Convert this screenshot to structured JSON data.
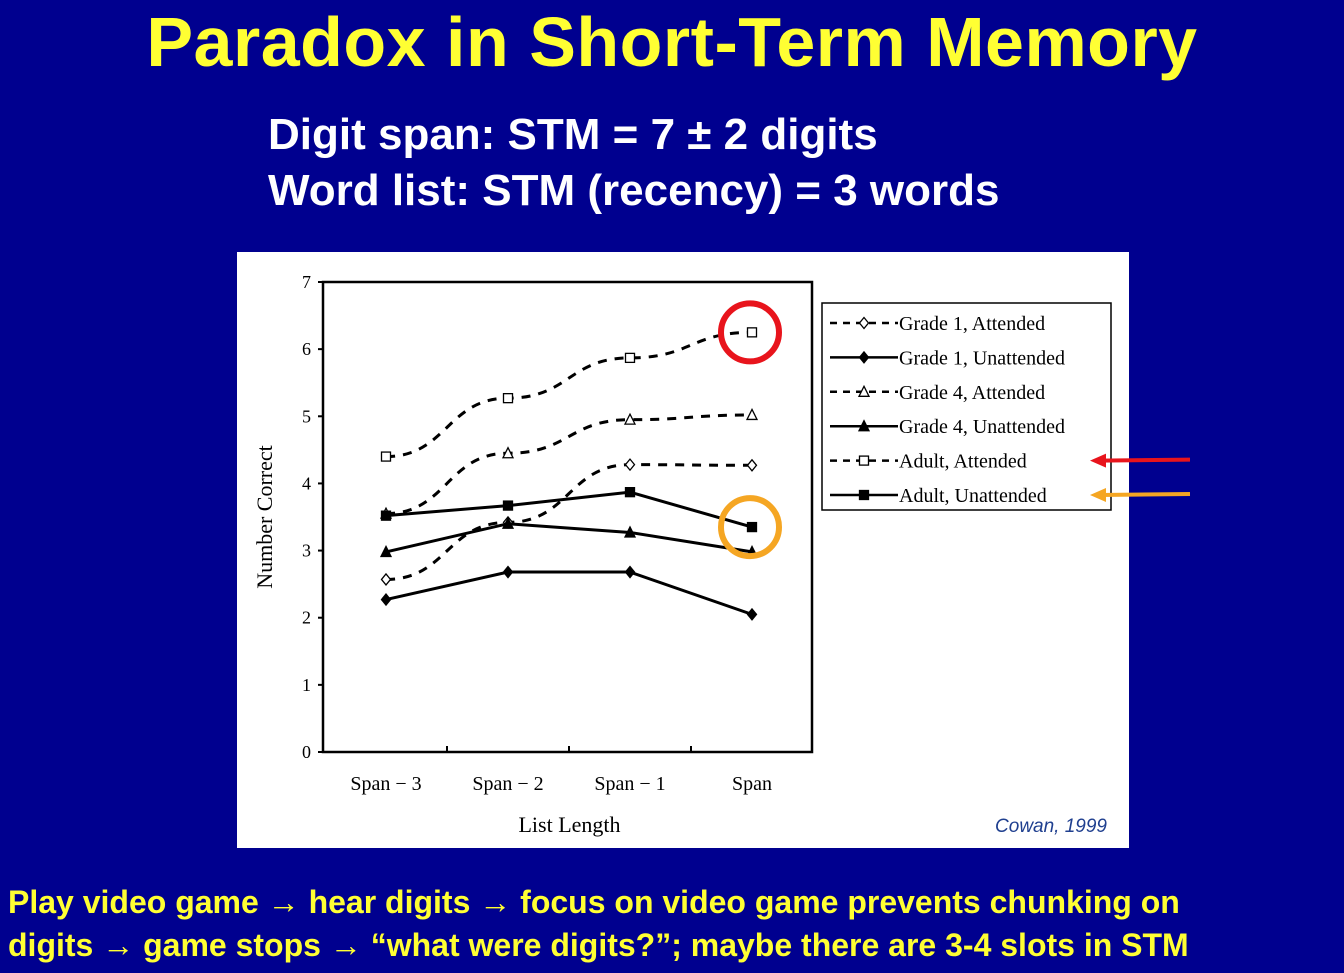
{
  "slide": {
    "title": "Paradox in Short-Term Memory",
    "subtitle_lines": [
      "Digit span: STM = 7 ± 2 digits",
      "Word list: STM (recency) = 3 words"
    ],
    "footer_lines": [
      "Play video game → hear digits → focus on video game prevents chunking on",
      "digits → game stops → “what were digits?”; maybe there are 3-4 slots in STM"
    ],
    "citation": "Cowan, 1999",
    "colors": {
      "background": "#00008f",
      "title": "#ffff33",
      "highlight_red": "#e8141c",
      "highlight_orange": "#f5a623"
    }
  },
  "chart_data": {
    "type": "line",
    "categories": [
      "Span − 3",
      "Span − 2",
      "Span − 1",
      "Span"
    ],
    "xlabel": "List Length",
    "ylabel": "Number Correct",
    "ylim": [
      0,
      7
    ],
    "yticks": [
      0,
      1,
      2,
      3,
      4,
      5,
      6,
      7
    ],
    "grid": false,
    "legend_position": "right",
    "series": [
      {
        "name": "Grade 1, Attended",
        "values": [
          2.57,
          3.42,
          4.28,
          4.27
        ],
        "dashed": true,
        "marker": "diamond-open"
      },
      {
        "name": "Grade 1, Unattended",
        "values": [
          2.27,
          2.68,
          2.68,
          2.05
        ],
        "dashed": false,
        "marker": "diamond-filled"
      },
      {
        "name": "Grade 4, Attended",
        "values": [
          3.55,
          4.45,
          4.95,
          5.02
        ],
        "dashed": true,
        "marker": "triangle-open"
      },
      {
        "name": "Grade 4, Unattended",
        "values": [
          2.98,
          3.4,
          3.27,
          2.98
        ],
        "dashed": false,
        "marker": "triangle-filled"
      },
      {
        "name": "Adult, Attended",
        "values": [
          4.4,
          5.27,
          5.87,
          6.25
        ],
        "dashed": true,
        "marker": "square-open",
        "highlighted": "red"
      },
      {
        "name": "Adult, Unattended",
        "values": [
          3.52,
          3.67,
          3.87,
          3.35
        ],
        "dashed": false,
        "marker": "square-filled",
        "highlighted": "orange"
      }
    ]
  }
}
